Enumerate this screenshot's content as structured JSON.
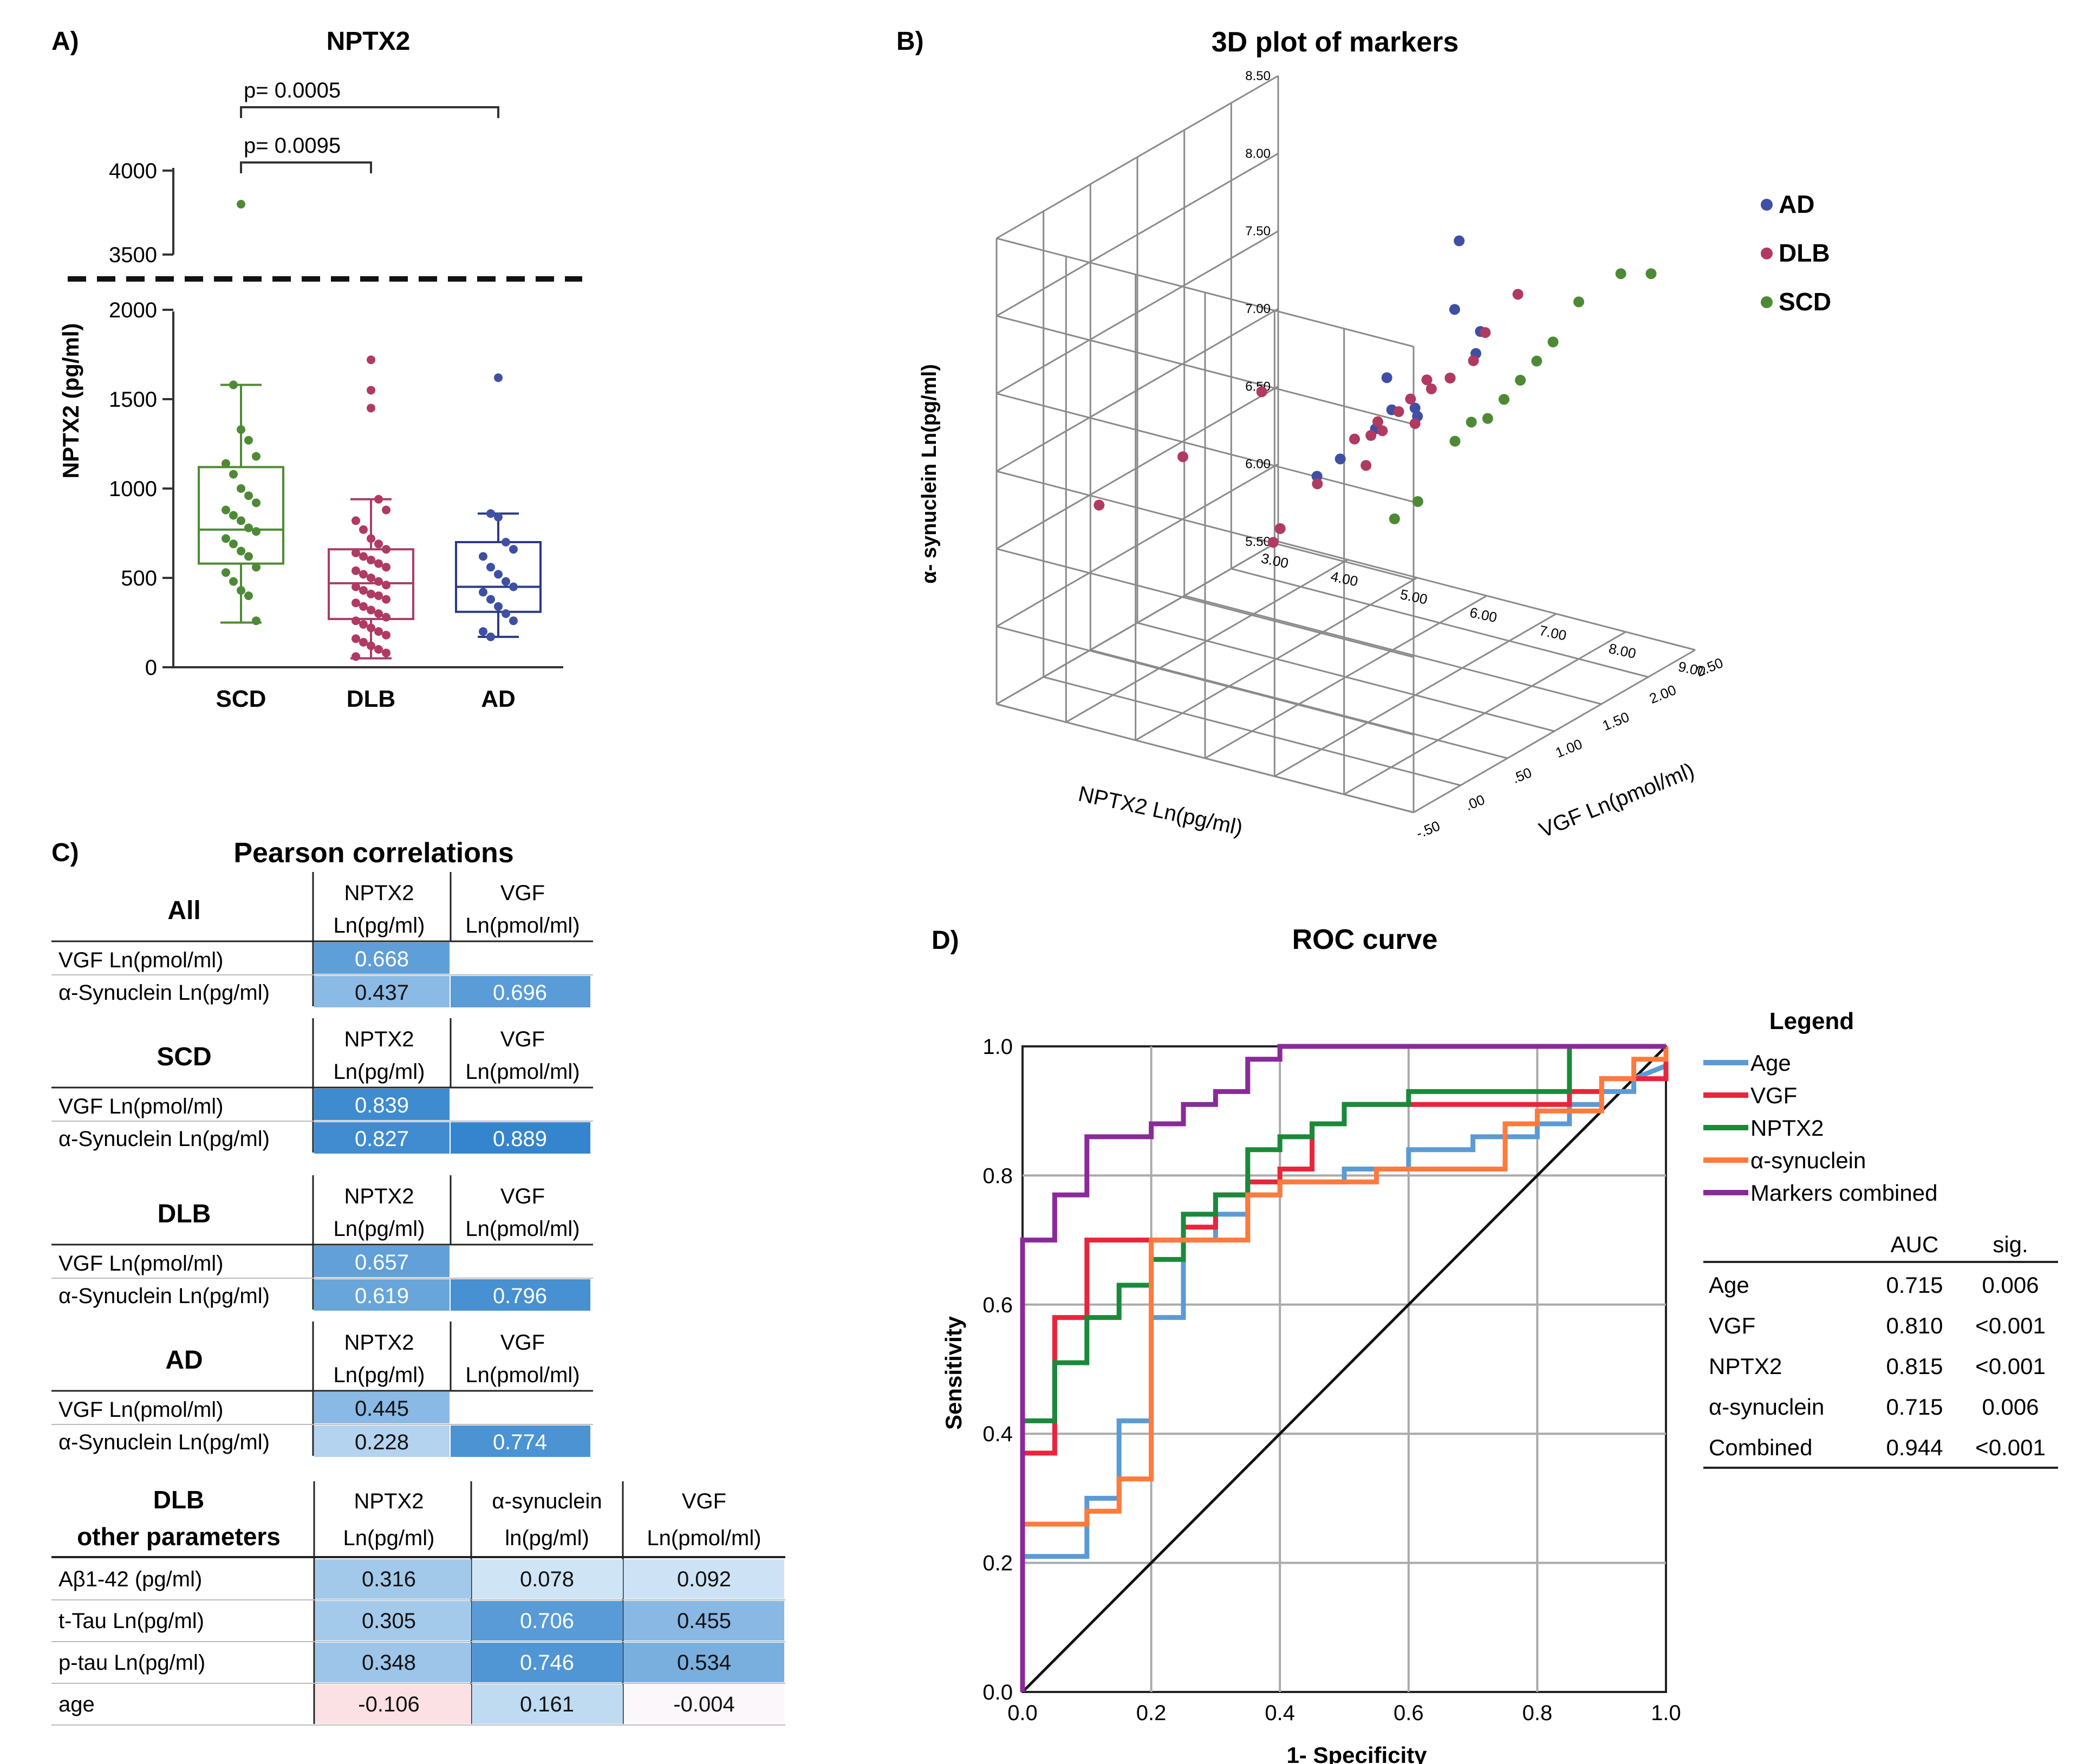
{
  "panelA": {
    "label": "A)",
    "title": "NPTX2",
    "ylabel": "NPTX2 (pg/ml)",
    "categories": [
      "SCD",
      "DLB",
      "AD"
    ],
    "yticks_lower": [
      "0",
      "500",
      "1000",
      "1500",
      "2000"
    ],
    "yticks_upper": [
      "3500",
      "4000"
    ],
    "pvals": [
      "p= 0.0095",
      "p= 0.0005"
    ]
  },
  "panelB": {
    "label": "B)",
    "title": "3D plot of markers",
    "zlabel": "α- synuclein Ln(pg/ml)",
    "xlabel": "NPTX2 Ln(pg/ml)",
    "ylabel": "VGF Ln(pmol/ml)",
    "zticks": [
      "5.50",
      "6.00",
      "6.50",
      "7.00",
      "7.50",
      "8.00",
      "8.50"
    ],
    "xticks": [
      "3.00",
      "4.00",
      "5.00",
      "6.00",
      "7.00",
      "8.00",
      "9.00"
    ],
    "yticks": [
      "-.50",
      ".00",
      ".50",
      "1.00",
      "1.50",
      "2.00",
      "2.50"
    ],
    "legend": [
      "AD",
      "DLB",
      "SCD"
    ]
  },
  "panelC": {
    "label": "C)",
    "title": "Pearson correlations",
    "col_nptx2": [
      "NPTX2",
      "Ln(pg/ml)"
    ],
    "col_vgf": [
      "VGF",
      "Ln(pmol/ml)"
    ],
    "row_vgf": "VGF Ln(pmol/ml)",
    "row_asyn": "α-Synuclein Ln(pg/ml)",
    "groups": [
      {
        "name": "All",
        "vals": [
          "0.668",
          "0.437",
          "0.696"
        ]
      },
      {
        "name": "SCD",
        "vals": [
          "0.839",
          "0.827",
          "0.889"
        ]
      },
      {
        "name": "DLB",
        "vals": [
          "0.657",
          "0.619",
          "0.796"
        ]
      },
      {
        "name": "AD",
        "vals": [
          "0.445",
          "0.228",
          "0.774"
        ]
      }
    ],
    "other": {
      "title": [
        "DLB",
        "other parameters"
      ],
      "headers": [
        [
          "NPTX2",
          "Ln(pg/ml)"
        ],
        [
          "α-synuclein",
          "ln(pg/ml)"
        ],
        [
          "VGF",
          "Ln(pmol/ml)"
        ]
      ],
      "rows": [
        {
          "name": "Aβ1-42 (pg/ml)",
          "vals": [
            "0.316",
            "0.078",
            "0.092"
          ]
        },
        {
          "name": "t-Tau Ln(pg/ml)",
          "vals": [
            "0.305",
            "0.706",
            "0.455"
          ]
        },
        {
          "name": "p-tau Ln(pg/ml)",
          "vals": [
            "0.348",
            "0.746",
            "0.534"
          ]
        },
        {
          "name": "age",
          "vals": [
            "-0.106",
            "0.161",
            "-0.004"
          ]
        }
      ]
    }
  },
  "panelD": {
    "label": "D)",
    "title": "ROC curve",
    "xlabel": "1- Specificity",
    "ylabel": "Sensitivity",
    "ticks": [
      "0.0",
      "0.2",
      "0.4",
      "0.6",
      "0.8",
      "1.0"
    ],
    "legend_title": "Legend",
    "legend": [
      "Age",
      "VGF",
      "NPTX2",
      "α-synuclein",
      "Markers combined"
    ],
    "auc_headers": [
      "AUC",
      "sig."
    ],
    "auc_rows": [
      {
        "name": "Age",
        "auc": "0.715",
        "sig": "0.006"
      },
      {
        "name": "VGF",
        "auc": "0.810",
        "sig": "<0.001"
      },
      {
        "name": "NPTX2",
        "auc": "0.815",
        "sig": "<0.001"
      },
      {
        "name": "α-synuclein",
        "auc": "0.715",
        "sig": "0.006"
      },
      {
        "name": "Combined",
        "auc": "0.944",
        "sig": "<0.001"
      }
    ]
  },
  "colors": {
    "scd": "#4e8a36",
    "dlb": "#b03a62",
    "ad": "#3f4fa3",
    "dlb_box": "#a83c68",
    "ad_box": "#2a3a84",
    "age": "#5b9bd5",
    "vgf": "#e8253a",
    "nptx2": "#1a8a3a",
    "asyn": "#ff7a3c",
    "combined": "#8a2a9a"
  },
  "chart_data": [
    {
      "type": "box",
      "title": "NPTX2",
      "ylabel": "NPTX2 (pg/ml)",
      "categories": [
        "SCD",
        "DLB",
        "AD"
      ],
      "boxes": [
        {
          "min": 250,
          "q1": 580,
          "median": 770,
          "q3": 1120,
          "max": 1580
        },
        {
          "min": 50,
          "q1": 270,
          "median": 470,
          "q3": 660,
          "max": 940
        },
        {
          "min": 170,
          "q1": 310,
          "median": 450,
          "q3": 700,
          "max": 860
        }
      ],
      "points": [
        [
          3800,
          1580,
          1330,
          1270,
          1180,
          1140,
          1080,
          1000,
          960,
          920,
          880,
          850,
          820,
          780,
          760,
          720,
          690,
          650,
          620,
          560,
          530,
          480,
          430,
          400,
          260
        ],
        [
          1720,
          1550,
          1450,
          940,
          880,
          820,
          770,
          720,
          690,
          660,
          640,
          620,
          600,
          580,
          560,
          540,
          520,
          500,
          480,
          460,
          450,
          430,
          410,
          400,
          380,
          360,
          340,
          320,
          300,
          280,
          260,
          240,
          220,
          200,
          180,
          160,
          140,
          120,
          100,
          80,
          60
        ],
        [
          1620,
          860,
          840,
          700,
          660,
          620,
          560,
          520,
          480,
          450,
          420,
          380,
          340,
          300,
          260,
          200,
          170
        ]
      ],
      "ylim_lower": [
        0,
        2000
      ],
      "ylim_upper": [
        3500,
        4000
      ],
      "comparisons": [
        {
          "groups": [
            "SCD",
            "DLB"
          ],
          "p": "0.0095"
        },
        {
          "groups": [
            "SCD",
            "AD"
          ],
          "p": "0.0005"
        }
      ]
    },
    {
      "type": "scatter3d",
      "title": "3D plot of markers",
      "axes": {
        "x": "NPTX2 Ln(pg/ml)",
        "y": "VGF Ln(pmol/ml)",
        "z": "α- synuclein Ln(pg/ml)"
      },
      "xlim": [
        3,
        9
      ],
      "ylim": [
        -0.5,
        2.5
      ],
      "zlim": [
        5.5,
        8.5
      ],
      "groups": {
        "AD": [
          [
            7.9,
            0.8,
            8.6
          ],
          [
            7.7,
            0.9,
            8.1
          ],
          [
            7.4,
            0.4,
            7.8
          ],
          [
            7.6,
            1.2,
            7.7
          ],
          [
            7.2,
            0.6,
            7.5
          ],
          [
            7.0,
            0.2,
            7.3
          ],
          [
            7.3,
            0.8,
            7.4
          ],
          [
            7.5,
            1.0,
            7.6
          ],
          [
            6.8,
            0.1,
            7.2
          ],
          [
            7.1,
            0.5,
            7.4
          ],
          [
            7.8,
            1.1,
            7.9
          ],
          [
            7.4,
            0.7,
            7.5
          ]
        ],
        "DLB": [
          [
            3.8,
            0.0,
            6.7
          ],
          [
            4.6,
            0.3,
            7.0
          ],
          [
            5.6,
            0.4,
            7.5
          ],
          [
            5.9,
            0.3,
            6.6
          ],
          [
            6.0,
            0.3,
            6.7
          ],
          [
            6.4,
            0.4,
            7.0
          ],
          [
            6.8,
            0.5,
            7.3
          ],
          [
            7.0,
            0.6,
            7.4
          ],
          [
            7.2,
            0.8,
            7.5
          ],
          [
            7.3,
            0.9,
            7.6
          ],
          [
            7.4,
            0.7,
            7.4
          ],
          [
            7.5,
            1.0,
            7.6
          ],
          [
            7.6,
            1.3,
            7.8
          ],
          [
            7.7,
            1.1,
            7.7
          ],
          [
            7.1,
            0.4,
            7.2
          ],
          [
            6.9,
            0.6,
            7.3
          ],
          [
            7.3,
            0.6,
            7.5
          ],
          [
            7.8,
            1.5,
            8.0
          ],
          [
            7.5,
            0.8,
            7.6
          ],
          [
            7.2,
            0.5,
            7.4
          ]
        ],
        "SCD": [
          [
            6.7,
            1.0,
            6.6
          ],
          [
            6.9,
            1.1,
            6.7
          ],
          [
            7.3,
            1.2,
            7.1
          ],
          [
            7.4,
            1.3,
            7.2
          ],
          [
            7.6,
            1.5,
            7.3
          ],
          [
            7.7,
            1.6,
            7.4
          ],
          [
            7.9,
            1.8,
            7.6
          ],
          [
            8.0,
            2.0,
            7.8
          ],
          [
            8.2,
            2.3,
            7.9
          ],
          [
            8.5,
            2.4,
            7.9
          ],
          [
            7.8,
            1.7,
            7.5
          ],
          [
            7.5,
            1.4,
            7.2
          ]
        ]
      }
    },
    {
      "type": "table",
      "title": "Pearson correlations",
      "groups": {
        "All": {
          "VGF~NPTX2": 0.668,
          "aSyn~NPTX2": 0.437,
          "aSyn~VGF": 0.696
        },
        "SCD": {
          "VGF~NPTX2": 0.839,
          "aSyn~NPTX2": 0.827,
          "aSyn~VGF": 0.889
        },
        "DLB": {
          "VGF~NPTX2": 0.657,
          "aSyn~NPTX2": 0.619,
          "aSyn~VGF": 0.796
        },
        "AD": {
          "VGF~NPTX2": 0.445,
          "aSyn~NPTX2": 0.228,
          "aSyn~VGF": 0.774
        }
      },
      "dlb_other": {
        "columns": [
          "NPTX2",
          "α-synuclein",
          "VGF"
        ],
        "Aβ1-42": [
          0.316,
          0.078,
          0.092
        ],
        "t-Tau": [
          0.305,
          0.706,
          0.455
        ],
        "p-tau": [
          0.348,
          0.746,
          0.534
        ],
        "age": [
          -0.106,
          0.161,
          -0.004
        ]
      }
    },
    {
      "type": "line",
      "title": "ROC curve",
      "xlabel": "1- Specificity",
      "ylabel": "Sensitivity",
      "xlim": [
        0,
        1
      ],
      "ylim": [
        0,
        1
      ],
      "series": [
        {
          "name": "Age",
          "key": "age",
          "points": [
            [
              0,
              0
            ],
            [
              0,
              0.21
            ],
            [
              0.1,
              0.21
            ],
            [
              0.1,
              0.3
            ],
            [
              0.15,
              0.3
            ],
            [
              0.15,
              0.42
            ],
            [
              0.2,
              0.42
            ],
            [
              0.2,
              0.58
            ],
            [
              0.25,
              0.58
            ],
            [
              0.25,
              0.7
            ],
            [
              0.3,
              0.7
            ],
            [
              0.3,
              0.74
            ],
            [
              0.35,
              0.74
            ],
            [
              0.35,
              0.77
            ],
            [
              0.4,
              0.77
            ],
            [
              0.4,
              0.79
            ],
            [
              0.5,
              0.79
            ],
            [
              0.5,
              0.81
            ],
            [
              0.6,
              0.81
            ],
            [
              0.6,
              0.84
            ],
            [
              0.7,
              0.84
            ],
            [
              0.7,
              0.86
            ],
            [
              0.8,
              0.86
            ],
            [
              0.8,
              0.88
            ],
            [
              0.85,
              0.88
            ],
            [
              0.85,
              0.91
            ],
            [
              0.9,
              0.91
            ],
            [
              0.9,
              0.93
            ],
            [
              0.95,
              0.93
            ],
            [
              0.95,
              0.95
            ],
            [
              1,
              0.97
            ]
          ]
        },
        {
          "name": "VGF",
          "key": "vgf",
          "points": [
            [
              0,
              0
            ],
            [
              0,
              0.37
            ],
            [
              0.05,
              0.37
            ],
            [
              0.05,
              0.58
            ],
            [
              0.1,
              0.58
            ],
            [
              0.1,
              0.7
            ],
            [
              0.25,
              0.7
            ],
            [
              0.25,
              0.72
            ],
            [
              0.3,
              0.72
            ],
            [
              0.3,
              0.77
            ],
            [
              0.35,
              0.77
            ],
            [
              0.35,
              0.79
            ],
            [
              0.4,
              0.79
            ],
            [
              0.4,
              0.81
            ],
            [
              0.45,
              0.81
            ],
            [
              0.45,
              0.88
            ],
            [
              0.5,
              0.88
            ],
            [
              0.5,
              0.91
            ],
            [
              0.85,
              0.91
            ],
            [
              0.85,
              0.93
            ],
            [
              0.9,
              0.93
            ],
            [
              0.9,
              0.95
            ],
            [
              1,
              0.95
            ],
            [
              1,
              1
            ]
          ]
        },
        {
          "name": "NPTX2",
          "key": "nptx2",
          "points": [
            [
              0,
              0
            ],
            [
              0,
              0.42
            ],
            [
              0.05,
              0.42
            ],
            [
              0.05,
              0.51
            ],
            [
              0.1,
              0.51
            ],
            [
              0.1,
              0.58
            ],
            [
              0.15,
              0.58
            ],
            [
              0.15,
              0.63
            ],
            [
              0.2,
              0.63
            ],
            [
              0.2,
              0.67
            ],
            [
              0.25,
              0.67
            ],
            [
              0.25,
              0.74
            ],
            [
              0.3,
              0.74
            ],
            [
              0.3,
              0.77
            ],
            [
              0.35,
              0.77
            ],
            [
              0.35,
              0.84
            ],
            [
              0.4,
              0.84
            ],
            [
              0.4,
              0.86
            ],
            [
              0.45,
              0.86
            ],
            [
              0.45,
              0.88
            ],
            [
              0.5,
              0.88
            ],
            [
              0.5,
              0.91
            ],
            [
              0.6,
              0.91
            ],
            [
              0.6,
              0.93
            ],
            [
              0.85,
              0.93
            ],
            [
              0.85,
              1
            ],
            [
              1,
              1
            ]
          ]
        },
        {
          "name": "α-synuclein",
          "key": "asyn",
          "points": [
            [
              0,
              0
            ],
            [
              0,
              0.26
            ],
            [
              0.1,
              0.26
            ],
            [
              0.1,
              0.28
            ],
            [
              0.15,
              0.28
            ],
            [
              0.15,
              0.33
            ],
            [
              0.2,
              0.33
            ],
            [
              0.2,
              0.7
            ],
            [
              0.35,
              0.7
            ],
            [
              0.35,
              0.77
            ],
            [
              0.4,
              0.77
            ],
            [
              0.4,
              0.79
            ],
            [
              0.55,
              0.79
            ],
            [
              0.55,
              0.81
            ],
            [
              0.75,
              0.81
            ],
            [
              0.75,
              0.88
            ],
            [
              0.8,
              0.88
            ],
            [
              0.8,
              0.9
            ],
            [
              0.9,
              0.9
            ],
            [
              0.9,
              0.95
            ],
            [
              0.95,
              0.95
            ],
            [
              0.95,
              0.98
            ],
            [
              1,
              0.98
            ],
            [
              1,
              1
            ]
          ]
        },
        {
          "name": "Markers combined",
          "key": "combined",
          "points": [
            [
              0,
              0
            ],
            [
              0,
              0.7
            ],
            [
              0.05,
              0.7
            ],
            [
              0.05,
              0.77
            ],
            [
              0.1,
              0.77
            ],
            [
              0.1,
              0.86
            ],
            [
              0.2,
              0.86
            ],
            [
              0.2,
              0.88
            ],
            [
              0.25,
              0.88
            ],
            [
              0.25,
              0.91
            ],
            [
              0.3,
              0.91
            ],
            [
              0.3,
              0.93
            ],
            [
              0.35,
              0.93
            ],
            [
              0.35,
              0.98
            ],
            [
              0.4,
              0.98
            ],
            [
              0.4,
              1
            ],
            [
              1,
              1
            ]
          ]
        }
      ],
      "diagonal": true
    }
  ]
}
